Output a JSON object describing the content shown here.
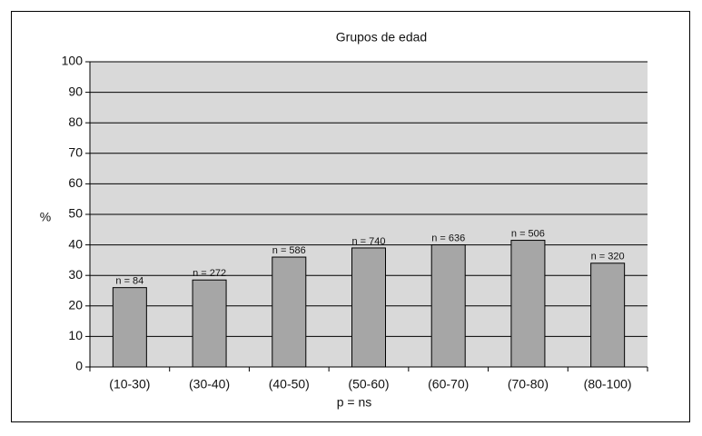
{
  "chart_data": {
    "type": "bar",
    "title": "Grupos de edad",
    "x_label": "p = ns",
    "y_label": "%",
    "categories": [
      "(10-30)",
      "(30-40)",
      "(40-50)",
      "(50-60)",
      "(60-70)",
      "(70-80)",
      "(80-100)"
    ],
    "values": [
      26,
      28.5,
      36,
      39,
      40,
      41.5,
      34
    ],
    "bar_labels": [
      "n = 84",
      "n = 272",
      "n = 586",
      "n = 740",
      "n = 636",
      "n = 506",
      "n = 320"
    ],
    "color": "#a6a6a6",
    "ylim": [
      0,
      100
    ],
    "yticks": [
      0,
      10,
      20,
      30,
      40,
      50,
      60,
      70,
      80,
      90,
      100
    ],
    "grid": true
  }
}
